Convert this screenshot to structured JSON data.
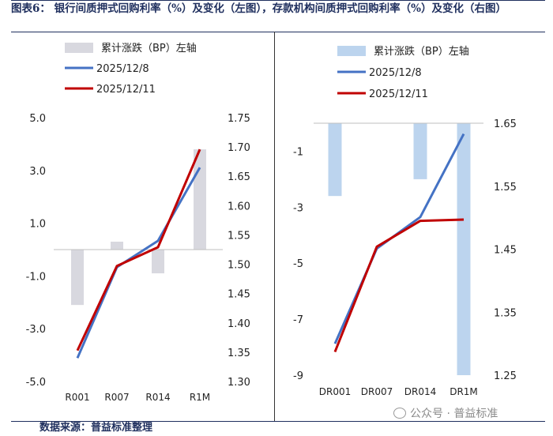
{
  "title": "图表6： 银行间质押式回购利率（%）及变化（左图），存款机构间质押式回购利率（%）及变化（右图）",
  "footer": "数据来源：普益标准整理",
  "watermark": "公众号 · 普益标准",
  "colors": {
    "bar_left": "#d8d8df",
    "bar_right": "#bcd4ee",
    "line_1208": "#4472c4",
    "line_1211": "#c00000",
    "title": "#1f2f5e"
  },
  "chart_data": [
    {
      "type": "bar+line",
      "categories": [
        "R001",
        "R007",
        "R014",
        "R1M"
      ],
      "bar_series": {
        "name": "累计涨跌（BP）左轴",
        "values": [
          -2.1,
          0.3,
          -0.9,
          3.8
        ]
      },
      "line_series": [
        {
          "name": "2025/12/8",
          "values": [
            1.34,
            1.495,
            1.54,
            1.665
          ]
        },
        {
          "name": "2025/12/11",
          "values": [
            1.353,
            1.497,
            1.529,
            1.696
          ]
        }
      ],
      "left_axis": {
        "ylim": [
          -5.0,
          5.0
        ],
        "ticks": [
          "5.0",
          "3.0",
          "1.0",
          "-1.0",
          "-3.0",
          "-5.0"
        ],
        "tick_values": [
          5,
          3,
          1,
          -1,
          -3,
          -5
        ]
      },
      "right_axis": {
        "ylim": [
          1.3,
          1.75
        ],
        "ticks": [
          "1.75",
          "1.70",
          "1.65",
          "1.60",
          "1.55",
          "1.50",
          "1.45",
          "1.40",
          "1.35",
          "1.30"
        ],
        "tick_values": [
          1.75,
          1.7,
          1.65,
          1.6,
          1.55,
          1.5,
          1.45,
          1.4,
          1.35,
          1.3
        ]
      },
      "legend": [
        "累计涨跌（BP）左轴",
        "2025/12/8",
        "2025/12/11"
      ]
    },
    {
      "type": "bar+line",
      "categories": [
        "DR001",
        "DR007",
        "DR014",
        "DR1M"
      ],
      "bar_series": {
        "name": "累计涨跌（BP）左轴",
        "values": [
          -2.6,
          0.0,
          -2.0,
          -9.0
        ]
      },
      "line_series": [
        {
          "name": "2025/12/8",
          "values": [
            1.3,
            1.451,
            1.501,
            1.633
          ]
        },
        {
          "name": "2025/12/11",
          "values": [
            1.287,
            1.454,
            1.495,
            1.497
          ]
        }
      ],
      "left_axis": {
        "ylim": [
          -9.0,
          0.0
        ],
        "ticks": [
          "-1",
          "-3",
          "-5",
          "-7",
          "-9"
        ],
        "tick_values": [
          -1,
          -3,
          -5,
          -7,
          -9
        ]
      },
      "right_axis": {
        "ylim": [
          1.25,
          1.65
        ],
        "ticks": [
          "1.65",
          "1.55",
          "1.45",
          "1.35",
          "1.25"
        ],
        "tick_values": [
          1.65,
          1.55,
          1.45,
          1.35,
          1.25
        ]
      },
      "legend": [
        "累计涨跌（BP）左轴",
        "2025/12/8",
        "2025/12/11"
      ]
    }
  ]
}
